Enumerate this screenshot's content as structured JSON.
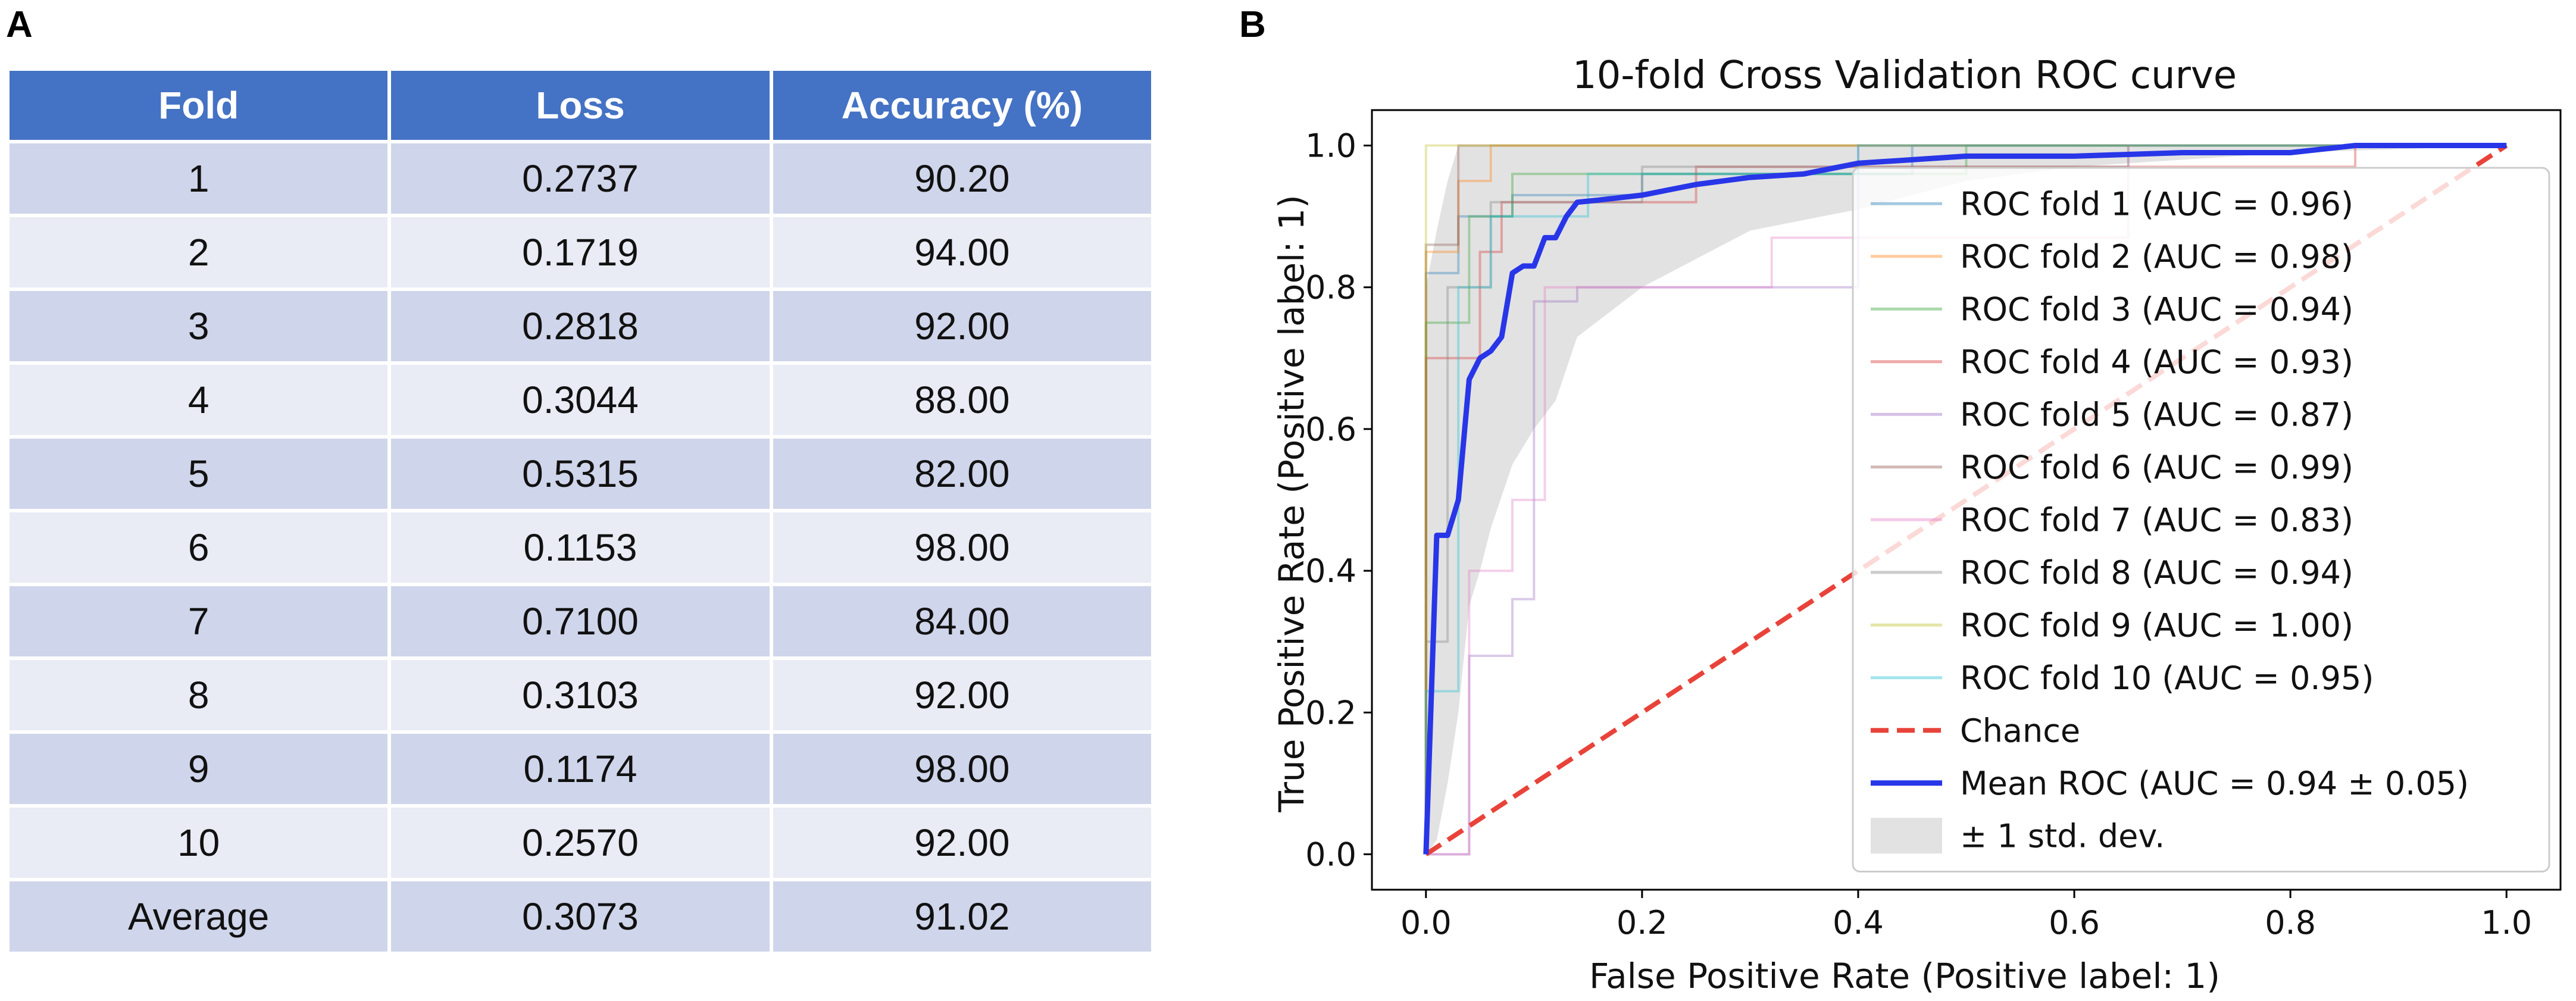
{
  "panel_a": {
    "label": "A",
    "headers": [
      "Fold",
      "Loss",
      "Accuracy (%)"
    ],
    "rows": [
      [
        "1",
        "0.2737",
        "90.20"
      ],
      [
        "2",
        "0.1719",
        "94.00"
      ],
      [
        "3",
        "0.2818",
        "92.00"
      ],
      [
        "4",
        "0.3044",
        "88.00"
      ],
      [
        "5",
        "0.5315",
        "82.00"
      ],
      [
        "6",
        "0.1153",
        "98.00"
      ],
      [
        "7",
        "0.7100",
        "84.00"
      ],
      [
        "8",
        "0.3103",
        "92.00"
      ],
      [
        "9",
        "0.1174",
        "98.00"
      ],
      [
        "10",
        "0.2570",
        "92.00"
      ],
      [
        "Average",
        "0.3073",
        "91.02"
      ]
    ]
  },
  "panel_b": {
    "label": "B"
  },
  "chart_data": {
    "type": "line",
    "title": "10-fold Cross Validation ROC curve",
    "xlabel": "False Positive Rate (Positive label: 1)",
    "ylabel": "True Positive Rate (Positive label: 1)",
    "xlim": [
      -0.05,
      1.05
    ],
    "ylim": [
      -0.05,
      1.05
    ],
    "xticks": [
      "0.0",
      "0.2",
      "0.4",
      "0.6",
      "0.8",
      "1.0"
    ],
    "yticks": [
      "0.0",
      "0.2",
      "0.4",
      "0.6",
      "0.8",
      "1.0"
    ],
    "legend_position": "lower-right",
    "series": [
      {
        "name": "ROC fold 1 (AUC = 0.96)",
        "color": "#1f77b4",
        "x": [
          0,
          0,
          0.03,
          0.03,
          0.08,
          0.08,
          0.2,
          0.2,
          0.45,
          0.45,
          1
        ],
        "y": [
          0,
          0.82,
          0.82,
          0.9,
          0.9,
          0.93,
          0.93,
          0.96,
          0.96,
          1,
          1
        ]
      },
      {
        "name": "ROC fold 2 (AUC = 0.98)",
        "color": "#ff7f0e",
        "x": [
          0,
          0,
          0.03,
          0.03,
          0.06,
          0.06,
          1
        ],
        "y": [
          0,
          0.85,
          0.85,
          0.95,
          0.95,
          1,
          1
        ]
      },
      {
        "name": "ROC fold 3 (AUC = 0.94)",
        "color": "#2ca02c",
        "x": [
          0,
          0,
          0.04,
          0.04,
          0.08,
          0.08,
          0.5,
          0.5,
          1
        ],
        "y": [
          0,
          0.75,
          0.75,
          0.9,
          0.9,
          0.96,
          0.96,
          1,
          1
        ]
      },
      {
        "name": "ROC fold 4 (AUC = 0.93)",
        "color": "#d62728",
        "x": [
          0,
          0,
          0.05,
          0.05,
          0.07,
          0.07,
          0.25,
          0.25,
          0.86,
          0.86,
          1
        ],
        "y": [
          0,
          0.7,
          0.7,
          0.85,
          0.85,
          0.92,
          0.92,
          0.97,
          0.97,
          1,
          1
        ]
      },
      {
        "name": "ROC fold 5 (AUC = 0.87)",
        "color": "#9467bd",
        "x": [
          0,
          0.04,
          0.04,
          0.08,
          0.08,
          0.1,
          0.1,
          0.14,
          0.14,
          0.4,
          0.4,
          1
        ],
        "y": [
          0,
          0,
          0.28,
          0.28,
          0.36,
          0.36,
          0.78,
          0.78,
          0.8,
          0.8,
          1,
          1
        ]
      },
      {
        "name": "ROC fold 6 (AUC = 0.99)",
        "color": "#8c564b",
        "x": [
          0,
          0,
          0.03,
          0.03,
          1
        ],
        "y": [
          0,
          0.86,
          0.86,
          1,
          1
        ]
      },
      {
        "name": "ROC fold 7 (AUC = 0.83)",
        "color": "#e377c2",
        "x": [
          0,
          0.04,
          0.04,
          0.08,
          0.08,
          0.11,
          0.11,
          0.32,
          0.32,
          0.65,
          0.65,
          1
        ],
        "y": [
          0,
          0,
          0.4,
          0.4,
          0.5,
          0.5,
          0.8,
          0.8,
          0.87,
          0.87,
          1,
          1
        ]
      },
      {
        "name": "ROC fold 8 (AUC = 0.94)",
        "color": "#7f7f7f",
        "x": [
          0,
          0,
          0.02,
          0.02,
          0.06,
          0.06,
          0.2,
          0.2,
          0.65,
          0.65,
          1
        ],
        "y": [
          0,
          0.3,
          0.3,
          0.8,
          0.8,
          0.92,
          0.92,
          0.97,
          0.97,
          1,
          1
        ]
      },
      {
        "name": "ROC fold 9 (AUC = 1.00)",
        "color": "#bcbd22",
        "x": [
          0,
          0,
          1
        ],
        "y": [
          0,
          1,
          1
        ]
      },
      {
        "name": "ROC fold 10 (AUC = 0.95)",
        "color": "#17becf",
        "x": [
          0,
          0,
          0.03,
          0.03,
          0.06,
          0.06,
          0.15,
          0.15,
          0.4,
          0.4,
          1
        ],
        "y": [
          0,
          0.23,
          0.23,
          0.8,
          0.8,
          0.9,
          0.9,
          0.96,
          0.96,
          1,
          1
        ]
      }
    ],
    "chance": {
      "name": "Chance",
      "color": "#e8433a",
      "x": [
        0,
        1
      ],
      "y": [
        0,
        1
      ]
    },
    "mean": {
      "name": "Mean ROC (AUC = 0.94 ± 0.05)",
      "color": "#2836e8",
      "x": [
        0,
        0.01,
        0.02,
        0.03,
        0.04,
        0.05,
        0.06,
        0.07,
        0.08,
        0.09,
        0.1,
        0.11,
        0.12,
        0.13,
        0.14,
        0.16,
        0.2,
        0.25,
        0.3,
        0.35,
        0.4,
        0.45,
        0.5,
        0.6,
        0.7,
        0.8,
        0.86,
        0.9,
        1.0
      ],
      "y": [
        0,
        0.45,
        0.45,
        0.5,
        0.67,
        0.7,
        0.71,
        0.73,
        0.82,
        0.83,
        0.83,
        0.87,
        0.87,
        0.9,
        0.92,
        0.923,
        0.93,
        0.945,
        0.955,
        0.96,
        0.975,
        0.98,
        0.985,
        0.985,
        0.99,
        0.99,
        1.0,
        1.0,
        1.0
      ]
    },
    "std_band": {
      "name": "± 1 std. dev.",
      "color": "#d3d3d3",
      "x": [
        0,
        0.01,
        0.02,
        0.03,
        0.04,
        0.05,
        0.06,
        0.08,
        0.1,
        0.12,
        0.14,
        0.2,
        0.3,
        0.4,
        0.5,
        0.6,
        0.8,
        1.0
      ],
      "upper": [
        0.8,
        0.88,
        0.95,
        1.0,
        1.0,
        1.0,
        1.0,
        1.0,
        1.0,
        1.0,
        1.0,
        1.0,
        1.0,
        1.0,
        1.0,
        1.0,
        1.0,
        1.0
      ],
      "lower": [
        0,
        0.02,
        0.1,
        0.2,
        0.35,
        0.4,
        0.46,
        0.55,
        0.6,
        0.64,
        0.73,
        0.8,
        0.88,
        0.91,
        0.95,
        0.97,
        0.99,
        1.0
      ]
    }
  }
}
